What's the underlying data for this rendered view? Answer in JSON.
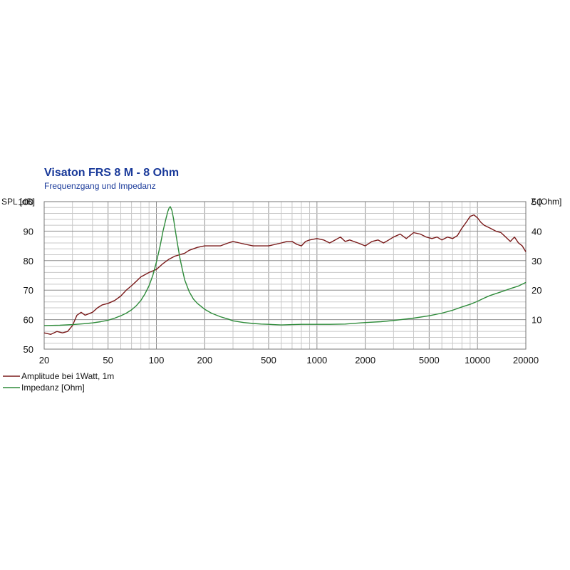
{
  "chart_data": {
    "type": "line",
    "title": "Visaton  FRS 8 M - 8 Ohm",
    "subtitle": "Frequenzgang und Impedanz",
    "ylabel_left": "SPL [dB]",
    "ylabel_right": "Z [Ohm]",
    "x_scale": "log",
    "xlim": [
      20,
      20000
    ],
    "ylim_left": [
      50,
      100
    ],
    "ylim_right": [
      0,
      50
    ],
    "x_ticks": [
      "20",
      "50",
      "100",
      "200",
      "500",
      "1000",
      "2000",
      "5000",
      "10000",
      "20000"
    ],
    "y_left_ticks": [
      "50",
      "60",
      "70",
      "80",
      "90",
      "100"
    ],
    "y_right_ticks": [
      "10",
      "20",
      "30",
      "40",
      "50"
    ],
    "grid": true,
    "legend_position": "bottom-left",
    "series": [
      {
        "name": "Amplitude bei 1Watt, 1m",
        "axis": "left",
        "color": "#7a1a1a",
        "x": [
          20,
          22,
          24,
          26,
          28,
          30,
          32,
          34,
          36,
          38,
          40,
          43,
          46,
          50,
          55,
          60,
          65,
          70,
          75,
          80,
          90,
          100,
          110,
          120,
          130,
          140,
          150,
          160,
          180,
          200,
          220,
          250,
          280,
          300,
          330,
          360,
          400,
          450,
          500,
          550,
          600,
          650,
          700,
          750,
          800,
          850,
          900,
          1000,
          1100,
          1200,
          1300,
          1400,
          1500,
          1600,
          1800,
          2000,
          2200,
          2400,
          2600,
          2800,
          3000,
          3300,
          3600,
          4000,
          4400,
          4800,
          5200,
          5600,
          6000,
          6500,
          7000,
          7500,
          8000,
          8500,
          9000,
          9500,
          10000,
          10500,
          11000,
          12000,
          13000,
          14000,
          15000,
          16000,
          17000,
          18000,
          19000,
          20000
        ],
        "y": [
          55.5,
          55.0,
          56.0,
          55.5,
          56.0,
          58.0,
          61.5,
          62.5,
          61.5,
          62.0,
          62.5,
          64.0,
          65.0,
          65.5,
          66.5,
          68.0,
          70.0,
          71.5,
          73.0,
          74.5,
          76.0,
          77.0,
          79.0,
          80.5,
          81.5,
          82.0,
          82.5,
          83.5,
          84.5,
          85.0,
          85.0,
          85.0,
          86.0,
          86.5,
          86.0,
          85.5,
          85.0,
          85.0,
          85.0,
          85.5,
          86.0,
          86.5,
          86.5,
          85.5,
          85.0,
          86.5,
          87.0,
          87.5,
          87.0,
          86.0,
          87.0,
          88.0,
          86.5,
          87.0,
          86.0,
          85.0,
          86.5,
          87.0,
          86.0,
          87.0,
          88.0,
          89.0,
          87.5,
          89.5,
          89.0,
          88.0,
          87.5,
          88.0,
          87.0,
          88.0,
          87.5,
          88.5,
          91.0,
          93.0,
          95.0,
          95.5,
          94.5,
          93.0,
          92.0,
          91.0,
          90.0,
          89.5,
          88.0,
          86.5,
          88.0,
          86.0,
          85.0,
          83.0
        ]
      },
      {
        "name": "Impedanz [Ohm]",
        "axis": "right",
        "color": "#2e8b3a",
        "x": [
          20,
          25,
          30,
          35,
          40,
          45,
          50,
          55,
          60,
          65,
          70,
          75,
          80,
          85,
          90,
          95,
          100,
          105,
          110,
          115,
          118,
          120,
          122,
          125,
          128,
          130,
          135,
          140,
          145,
          150,
          160,
          170,
          180,
          200,
          220,
          250,
          280,
          300,
          350,
          400,
          450,
          500,
          600,
          700,
          800,
          900,
          1000,
          1200,
          1500,
          2000,
          2500,
          3000,
          4000,
          5000,
          6000,
          7000,
          8000,
          9000,
          10000,
          11000,
          12000,
          14000,
          16000,
          18000,
          20000
        ],
        "y": [
          8.0,
          8.1,
          8.3,
          8.6,
          8.9,
          9.3,
          9.8,
          10.5,
          11.3,
          12.2,
          13.3,
          14.7,
          16.5,
          18.8,
          21.5,
          25.0,
          29.5,
          34.5,
          40.0,
          44.5,
          46.8,
          47.8,
          48.3,
          47.0,
          44.0,
          41.5,
          36.0,
          31.0,
          27.0,
          23.5,
          19.5,
          17.0,
          15.5,
          13.5,
          12.2,
          11.0,
          10.2,
          9.6,
          9.0,
          8.7,
          8.5,
          8.4,
          8.2,
          8.3,
          8.4,
          8.4,
          8.4,
          8.4,
          8.5,
          9.0,
          9.3,
          9.7,
          10.5,
          11.3,
          12.2,
          13.2,
          14.3,
          15.2,
          16.2,
          17.3,
          18.2,
          19.4,
          20.5,
          21.4,
          22.6
        ]
      }
    ]
  }
}
